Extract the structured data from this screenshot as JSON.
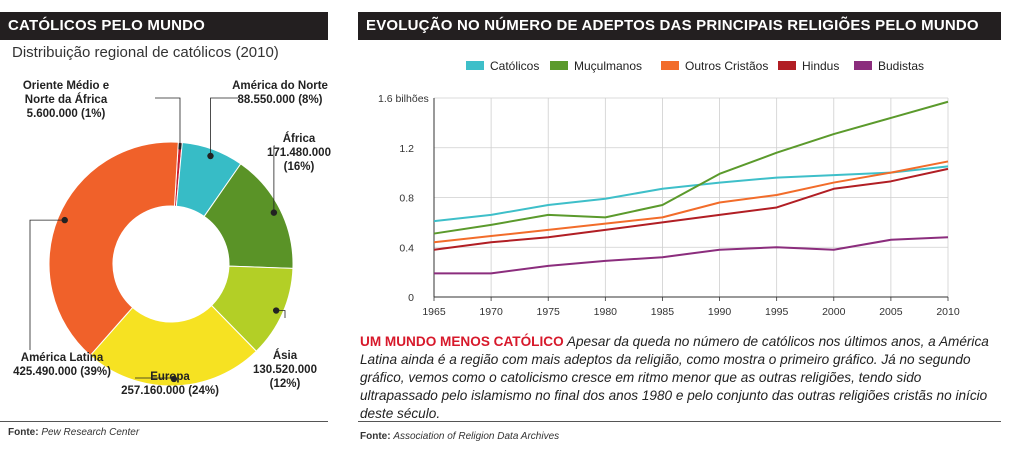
{
  "left_panel": {
    "title": "CATÓLICOS PELO MUNDO",
    "subtitle": "Distribuição regional de católicos (2010)",
    "source_label": "Fonte:",
    "source_text": "Pew Research Center"
  },
  "right_panel": {
    "title": "EVOLUÇÃO NO NÚMERO DE ADEPTOS DAS PRINCIPAIS RELIGIÕES PELO MUNDO",
    "source_label": "Fonte:",
    "source_text": "Association of Religion Data Archives",
    "caption_lead": "UM MUNDO MENOS CATÓLICO",
    "caption_text": " Apesar da queda no número de católicos nos últimos anos, a América Latina ainda é a região com mais adeptos da religião, como mostra o primeiro gráfico. Já no segundo gráfico, vemos como o catolicismo cresce em ritmo menor que as outras religiões, tendo sido ultrapassado pelo islamismo no final dos anos 1980 e pelo conjunto das outras religiões cristãs no início deste século."
  },
  "chart_data": [
    {
      "type": "pie",
      "title": "Distribuição regional de católicos (2010)",
      "donut": true,
      "slices": [
        {
          "name": "Oriente Médio e Norte da África",
          "name_lines": [
            "Oriente Médio e",
            "Norte da África"
          ],
          "value": 5600000,
          "value_label": "5.600.000 (1%)",
          "percent": 1,
          "color": "#c8202f"
        },
        {
          "name": "América do Norte",
          "name_lines": [
            "América do Norte"
          ],
          "value": 88550000,
          "value_label": "88.550.000 (8%)",
          "percent": 8,
          "color": "#37bcc6"
        },
        {
          "name": "África",
          "name_lines": [
            "África"
          ],
          "value": 171480000,
          "value_label": "171.480.000",
          "value_label_2": "(16%)",
          "percent": 16,
          "color": "#5a9327"
        },
        {
          "name": "Ásia",
          "name_lines": [
            "Ásia"
          ],
          "value": 130520000,
          "value_label": "130.520.000",
          "value_label_2": "(12%)",
          "percent": 12,
          "color": "#b3cf26"
        },
        {
          "name": "Europa",
          "name_lines": [
            "Europa"
          ],
          "value": 257160000,
          "value_label": "257.160.000 (24%)",
          "percent": 24,
          "color": "#f6e222"
        },
        {
          "name": "América Latina",
          "name_lines": [
            "América Latina"
          ],
          "value": 425490000,
          "value_label": "425.490.000 (39%)",
          "percent": 39,
          "color": "#f0612a"
        }
      ]
    },
    {
      "type": "line",
      "title": "EVOLUÇÃO NO NÚMERO DE ADEPTOS DAS PRINCIPAIS RELIGIÕES PELO MUNDO",
      "x": [
        1965,
        1970,
        1975,
        1980,
        1985,
        1990,
        1995,
        2000,
        2005,
        2010
      ],
      "x_ticks": [
        "1965",
        "1970",
        "1975",
        "1980",
        "1985",
        "1990",
        "1995",
        "2000",
        "2005",
        "2010"
      ],
      "ylim": [
        0,
        1.6
      ],
      "y_ticks": [
        0,
        0.4,
        0.8,
        1.2,
        1.6
      ],
      "y_tick_labels": [
        "0",
        "0.4",
        "0.8",
        "1.2",
        "1.6 bilhões"
      ],
      "legend_position": "top",
      "series": [
        {
          "name": "Católicos",
          "color": "#3ebfc9",
          "values": [
            0.61,
            0.66,
            0.74,
            0.79,
            0.87,
            0.92,
            0.96,
            0.98,
            1.0,
            1.05
          ]
        },
        {
          "name": "Muçulmanos",
          "color": "#5b9a2c",
          "values": [
            0.51,
            0.58,
            0.66,
            0.64,
            0.74,
            0.99,
            1.16,
            1.31,
            1.44,
            1.57
          ]
        },
        {
          "name": "Outros Cristãos",
          "color": "#f26c2a",
          "values": [
            0.44,
            0.49,
            0.54,
            0.59,
            0.64,
            0.76,
            0.82,
            0.92,
            1.0,
            1.09
          ]
        },
        {
          "name": "Hindus",
          "color": "#b11e24",
          "values": [
            0.38,
            0.44,
            0.48,
            0.54,
            0.6,
            0.66,
            0.72,
            0.87,
            0.93,
            1.03
          ]
        },
        {
          "name": "Budistas",
          "color": "#8b2d7d",
          "values": [
            0.19,
            0.19,
            0.25,
            0.29,
            0.32,
            0.38,
            0.4,
            0.38,
            0.46,
            0.48
          ]
        }
      ]
    }
  ]
}
